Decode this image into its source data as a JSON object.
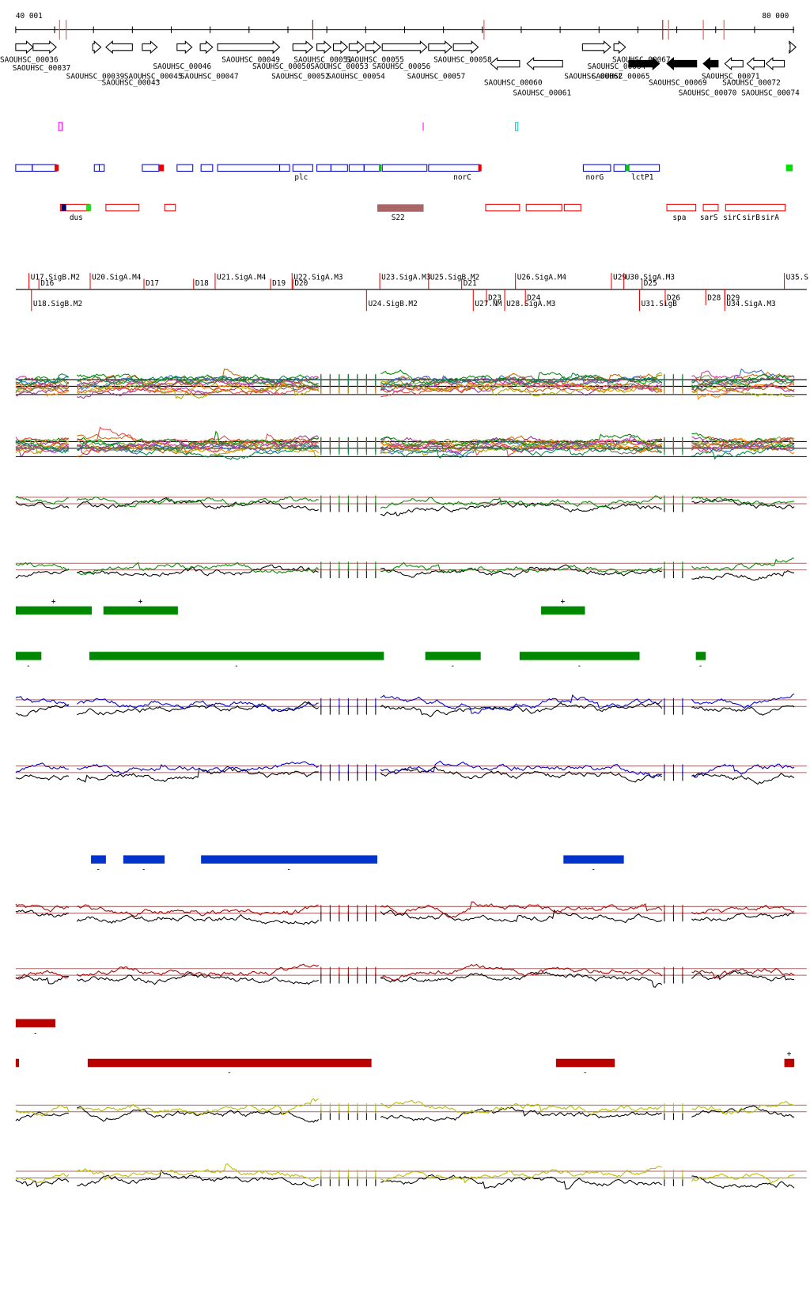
{
  "ruler": {
    "start": "40 001",
    "end": "80 000"
  },
  "genes": [
    "SAOUHSC_00036",
    "SAOUHSC_00037",
    "SAOUHSC_00039",
    "SAOUHSC_00043",
    "SAOUHSC_00045",
    "SAOUHSC_00046",
    "SAOUHSC_00047",
    "SAOUHSC_00049",
    "SAOUHSC_00050",
    "SAOUHSC_00051",
    "SAOUHSC_00052",
    "SAOUHSC_00053",
    "SAOUHSC_00054",
    "SAOUHSC_00055",
    "SAOUHSC_00056",
    "SAOUHSC_00057",
    "SAOUHSC_00058",
    "SAOUHSC_00060",
    "SAOUHSC_00061",
    "SAOUHSC_00062",
    "SAOUHSC_00064",
    "SAOUHSC_00065",
    "SAOUHSC_00067",
    "SAOUHSC_00069",
    "SAOUHSC_00070",
    "SAOUHSC_00071",
    "SAOUHSC_00072",
    "SAOUHSC_00074"
  ],
  "features": [
    "plc",
    "norC",
    "norG",
    "lctP1",
    "dus",
    "S22",
    "spa",
    "sarS",
    "sirC",
    "sirB",
    "sirA"
  ],
  "segments": [
    "U17.SigB.M2",
    "D16",
    "U20.SigA.M4",
    "D17",
    "D18",
    "U21.SigA.M4",
    "D19",
    "D20",
    "U22.SigA.M3",
    "U23.SigA.M3",
    "U25.SigB.M2",
    "D21",
    "U26.SigA.M4",
    "U29",
    "U30.SigA.M3",
    "D25",
    "U35.S",
    "U18.SigB.M2",
    "U24.SigB.M2",
    "D23",
    "U27.NM",
    "U28.SigA.M3",
    "D24",
    "U31.SigB",
    "D26",
    "D28",
    "D29",
    "U34.SigA.M3"
  ],
  "signs": [
    "+",
    "+",
    "+",
    "-",
    "-",
    "-",
    "-",
    "-",
    "-",
    "-",
    "-",
    "-",
    "-",
    "-",
    "-",
    "+",
    "-",
    "-"
  ]
}
